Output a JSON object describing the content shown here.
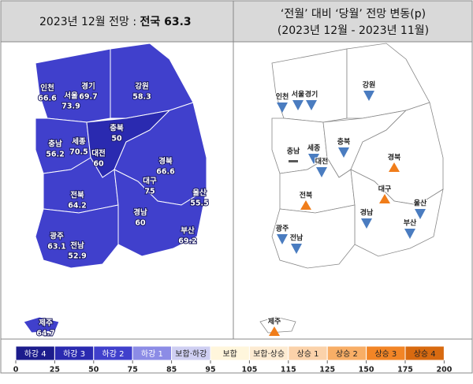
{
  "left_panel": {
    "title": "2023년 12월 전망 :",
    "title_highlight": "전국 63.3",
    "regions": [
      {
        "name": "인천",
        "value": 66.6
      },
      {
        "name": "서울",
        "value": 73.9
      },
      {
        "name": "경기",
        "value": 69.7
      },
      {
        "name": "강원",
        "value": 58.3
      },
      {
        "name": "충남",
        "value": 56.2
      },
      {
        "name": "세종",
        "value": 70.5
      },
      {
        "name": "대전",
        "value": 60
      },
      {
        "name": "충북",
        "value": 50
      },
      {
        "name": "경북",
        "value": 66.6
      },
      {
        "name": "대구",
        "value": 75
      },
      {
        "name": "전북",
        "value": 64.2
      },
      {
        "name": "울산",
        "value": 55.5
      },
      {
        "name": "경남",
        "value": 60
      },
      {
        "name": "부산",
        "value": 69.2
      },
      {
        "name": "광주",
        "value": 63.1
      },
      {
        "name": "전남",
        "value": 52.9
      },
      {
        "name": "제주",
        "value": 64.7
      }
    ]
  },
  "right_panel": {
    "title": "‘전월’ 대비 ‘당월’ 전망 변동(p)",
    "subtitle": "(2023년 12월 - 2023년 11월)",
    "up_color": "#f07d1a",
    "down_color": "#4a7cc0",
    "flat_color": "#595959",
    "regions": [
      {
        "name": "인천",
        "direction": "down"
      },
      {
        "name": "서울",
        "direction": "down"
      },
      {
        "name": "경기",
        "direction": "down"
      },
      {
        "name": "강원",
        "direction": "down"
      },
      {
        "name": "충남",
        "direction": "flat"
      },
      {
        "name": "세종",
        "direction": "down"
      },
      {
        "name": "대전",
        "direction": "down"
      },
      {
        "name": "충북",
        "direction": "down"
      },
      {
        "name": "경북",
        "direction": "up"
      },
      {
        "name": "대구",
        "direction": "up"
      },
      {
        "name": "전북",
        "direction": "up"
      },
      {
        "name": "울산",
        "direction": "down"
      },
      {
        "name": "경남",
        "direction": "down"
      },
      {
        "name": "부산",
        "direction": "down"
      },
      {
        "name": "광주",
        "direction": "down"
      },
      {
        "name": "전남",
        "direction": "down"
      },
      {
        "name": "제주",
        "direction": "up"
      }
    ]
  },
  "legend": {
    "bins": [
      {
        "label": "하강 4",
        "color": "#1c1c8c"
      },
      {
        "label": "하강 3",
        "color": "#2a2ab0"
      },
      {
        "label": "하강 2",
        "color": "#4040cc"
      },
      {
        "label": "하강 1",
        "color": "#8c8ce6"
      },
      {
        "label": "보합·하강",
        "color": "#cfcff2"
      },
      {
        "label": "보합",
        "color": "#fff6dc"
      },
      {
        "label": "보합·상승",
        "color": "#fdebd2"
      },
      {
        "label": "상승 1",
        "color": "#fbd2aa"
      },
      {
        "label": "상승 2",
        "color": "#f8ae66"
      },
      {
        "label": "상승 3",
        "color": "#f28526"
      },
      {
        "label": "상승 4",
        "color": "#d86a10"
      }
    ],
    "ticks": [
      0,
      25,
      50,
      75,
      85,
      95,
      105,
      115,
      125,
      150,
      175,
      200
    ]
  }
}
